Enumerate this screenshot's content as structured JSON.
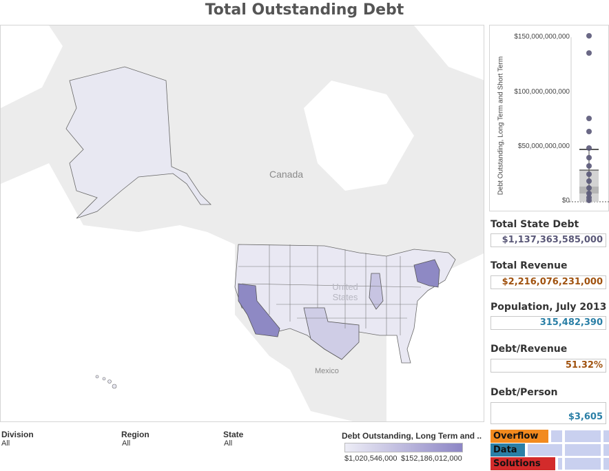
{
  "title": "Total Outstanding Debt",
  "map": {
    "label_country": "Canada",
    "label_us": "United States",
    "label_mexico": "Mexico"
  },
  "boxplot": {
    "axis_label": "Debt Outstanding, Long Term and Short Term",
    "ticks": [
      "$150,000,000,000",
      "$100,000,000,000",
      "$50,000,000,000",
      "$0"
    ],
    "point_color": "#5a5878"
  },
  "kpis": [
    {
      "label": "Total State Debt",
      "value": "$1,137,363,585,000",
      "color": "#5a5878"
    },
    {
      "label": "Total Revenue",
      "value": "$2,216,076,231,000",
      "color": "#a0520f"
    },
    {
      "label": "Population, July 2013",
      "value": "315,482,390",
      "color": "#2a7fa6"
    },
    {
      "label": "Debt/Revenue",
      "value": "51.32%",
      "color": "#a0520f"
    },
    {
      "label": "Debt/Person",
      "value": "$3,605",
      "color": "#2a7fa6"
    }
  ],
  "filters": [
    {
      "label": "Division",
      "value": "All"
    },
    {
      "label": "Region",
      "value": "All"
    },
    {
      "label": "State",
      "value": "All"
    }
  ],
  "legend": {
    "title": "Debt Outstanding, Long Term and ..",
    "min": "$1,020,546,000",
    "max": "$152,186,012,000"
  },
  "brand": {
    "overflow": "Overflow",
    "data": "Data",
    "solutions": "Solutions",
    "overflow_color": "#f28a1e",
    "data_color": "#2a7fa6",
    "solutions_color": "#d32b2b"
  }
}
